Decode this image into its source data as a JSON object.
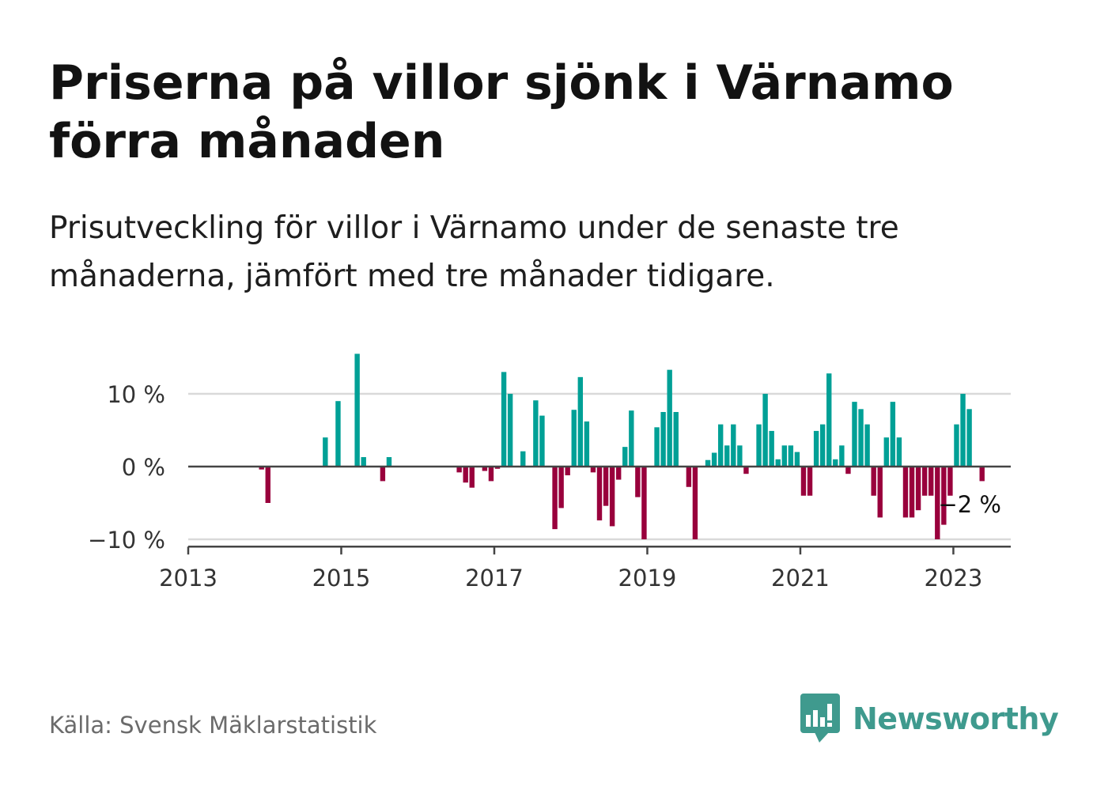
{
  "header": {
    "title": "Priserna på villor sjönk i Värnamo förra månaden",
    "subtitle": "Prisutveckling för villor i Värnamo under de senaste tre månaderna, jämfört med tre månader tidigare."
  },
  "footer": {
    "source": "Källa: Svensk Mäklarstatistik",
    "brand": "Newsworthy"
  },
  "colors": {
    "positive": "#00a096",
    "negative": "#99003c",
    "brand": "#3f9a8e",
    "grid": "#d9d9d9",
    "axis": "#444444"
  },
  "icons": {
    "brand_logo": "newsworthy-chart-bubble-icon"
  },
  "chart_data": {
    "type": "bar",
    "title": "",
    "xlabel": "",
    "ylabel": "",
    "ylim": [
      -11,
      11
    ],
    "yticks": [
      {
        "value": 10,
        "label": "10 %"
      },
      {
        "value": 0,
        "label": "0 %"
      },
      {
        "value": -10,
        "label": "−10 %"
      }
    ],
    "xlim": [
      "2013-01",
      "2023-10"
    ],
    "xticks": [
      "2013",
      "2015",
      "2017",
      "2019",
      "2021",
      "2023"
    ],
    "grid": true,
    "annotation": {
      "date": "2023-03",
      "value": -2,
      "label": "−2 %"
    },
    "series": [
      {
        "values": [
          [
            "2013-12",
            -0.4
          ],
          [
            "2014-01",
            -5.0
          ],
          [
            "2014-10",
            4.0
          ],
          [
            "2014-12",
            9.0
          ],
          [
            "2015-03",
            15.5
          ],
          [
            "2015-04",
            1.3
          ],
          [
            "2015-07",
            -2.0
          ],
          [
            "2015-08",
            1.3
          ],
          [
            "2016-07",
            -0.8
          ],
          [
            "2016-08",
            -2.2
          ],
          [
            "2016-09",
            -2.9
          ],
          [
            "2016-11",
            -0.6
          ],
          [
            "2016-12",
            -2.0
          ],
          [
            "2017-01",
            -0.3
          ],
          [
            "2017-02",
            13.0
          ],
          [
            "2017-03",
            10.0
          ],
          [
            "2017-05",
            2.1
          ],
          [
            "2017-07",
            9.1
          ],
          [
            "2017-08",
            7.0
          ],
          [
            "2017-10",
            -8.6
          ],
          [
            "2017-11",
            -5.7
          ],
          [
            "2017-12",
            -1.2
          ],
          [
            "2018-01",
            7.8
          ],
          [
            "2018-02",
            12.3
          ],
          [
            "2018-03",
            6.2
          ],
          [
            "2018-04",
            -0.8
          ],
          [
            "2018-05",
            -7.4
          ],
          [
            "2018-06",
            -5.4
          ],
          [
            "2018-07",
            -8.2
          ],
          [
            "2018-08",
            -1.8
          ],
          [
            "2018-09",
            2.7
          ],
          [
            "2018-10",
            7.7
          ],
          [
            "2018-11",
            -4.2
          ],
          [
            "2018-12",
            -10.0
          ],
          [
            "2019-02",
            5.4
          ],
          [
            "2019-03",
            7.5
          ],
          [
            "2019-04",
            13.3
          ],
          [
            "2019-05",
            7.5
          ],
          [
            "2019-07",
            -2.8
          ],
          [
            "2019-08",
            -10.0
          ],
          [
            "2019-10",
            0.9
          ],
          [
            "2019-11",
            1.9
          ],
          [
            "2019-12",
            5.8
          ],
          [
            "2020-01",
            2.9
          ],
          [
            "2020-02",
            5.8
          ],
          [
            "2020-03",
            2.9
          ],
          [
            "2020-04",
            -1.0
          ],
          [
            "2020-06",
            5.8
          ],
          [
            "2020-07",
            10.0
          ],
          [
            "2020-08",
            4.9
          ],
          [
            "2020-09",
            1.0
          ],
          [
            "2020-10",
            2.9
          ],
          [
            "2020-11",
            2.9
          ],
          [
            "2020-12",
            2.0
          ],
          [
            "2021-01",
            -4.0
          ],
          [
            "2021-02",
            -4.0
          ],
          [
            "2021-03",
            4.9
          ],
          [
            "2021-04",
            5.8
          ],
          [
            "2021-05",
            12.8
          ],
          [
            "2021-06",
            1.0
          ],
          [
            "2021-07",
            2.9
          ],
          [
            "2021-08",
            -1.0
          ],
          [
            "2021-09",
            8.9
          ],
          [
            "2021-10",
            7.9
          ],
          [
            "2021-11",
            5.8
          ],
          [
            "2021-12",
            -4.0
          ],
          [
            "2022-01",
            -7.0
          ],
          [
            "2022-02",
            4.0
          ],
          [
            "2022-03",
            8.9
          ],
          [
            "2022-04",
            4.0
          ],
          [
            "2022-05",
            -7.0
          ],
          [
            "2022-06",
            -7.0
          ],
          [
            "2022-07",
            -6.0
          ],
          [
            "2022-08",
            -4.0
          ],
          [
            "2022-09",
            -4.0
          ],
          [
            "2022-10",
            -10.0
          ],
          [
            "2022-11",
            -8.0
          ],
          [
            "2022-12",
            -4.0
          ],
          [
            "2023-01",
            5.8
          ],
          [
            "2023-02",
            10.0
          ],
          [
            "2023-03",
            7.9
          ],
          [
            "2023-05",
            -2.0
          ]
        ]
      }
    ]
  }
}
